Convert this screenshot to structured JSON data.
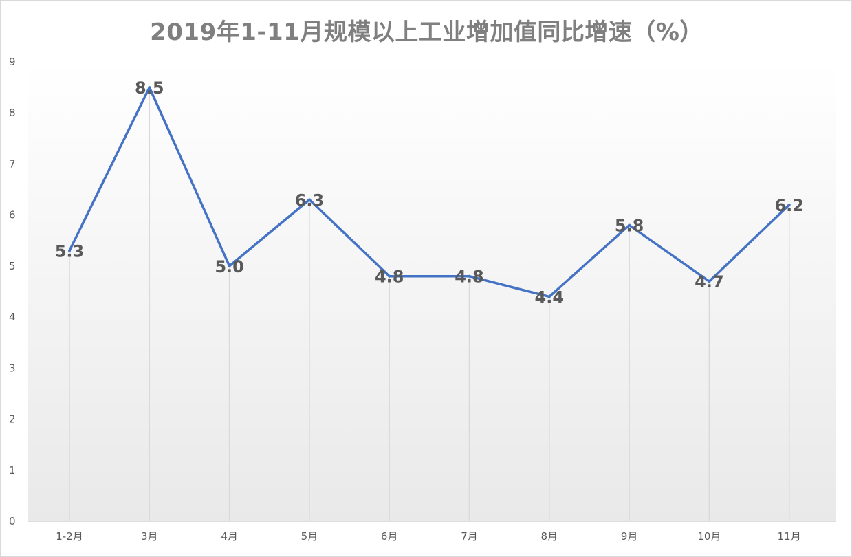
{
  "chart_data": {
    "type": "line",
    "title": "2019年1-11月规模以上工业增加值同比增速（%）",
    "xlabel": "",
    "ylabel": "",
    "categories": [
      "1-2月",
      "3月",
      "4月",
      "5月",
      "6月",
      "7月",
      "8月",
      "9月",
      "10月",
      "11月"
    ],
    "series": [
      {
        "values": [
          5.3,
          8.5,
          5.0,
          6.3,
          4.8,
          4.8,
          4.4,
          5.8,
          4.7,
          6.2
        ],
        "labels": [
          "5.3",
          "8.5",
          "5.0",
          "6.3",
          "4.8",
          "4.8",
          "4.4",
          "5.8",
          "4.7",
          "6.2"
        ],
        "color": "#4472c4"
      }
    ],
    "ylim": [
      0,
      9
    ],
    "yticks": [
      "0",
      "1",
      "2",
      "3",
      "4",
      "5",
      "6",
      "7",
      "8",
      "9"
    ],
    "grid": "vertical drop lines",
    "legend": "none",
    "plot_fill": "gradient white to light gray"
  }
}
